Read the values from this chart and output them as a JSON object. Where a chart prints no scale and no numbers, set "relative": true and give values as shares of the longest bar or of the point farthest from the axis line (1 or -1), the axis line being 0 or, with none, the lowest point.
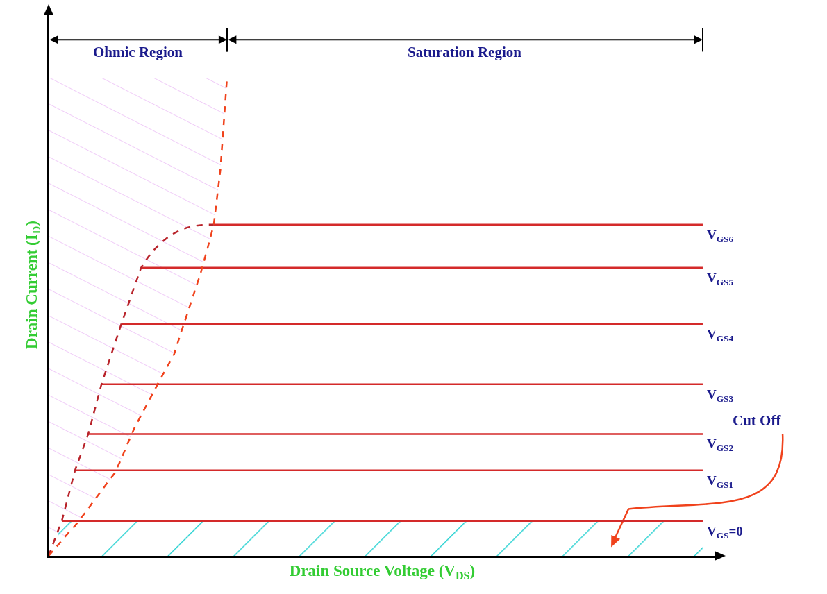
{
  "chart_data": {
    "type": "line",
    "relative": true,
    "xlabel": "Drain Source Voltage (V$_{DS}$)",
    "ylabel": "Drain Current (I$_{D}$)",
    "categories": [
      null,
      null,
      null,
      null,
      null,
      null,
      null,
      null,
      null,
      null,
      null,
      null,
      null,
      null,
      null,
      null,
      null,
      null,
      null,
      null,
      null,
      null,
      null,
      null,
      null,
      null,
      null,
      null,
      null,
      null,
      null,
      null,
      null,
      null,
      null,
      null,
      null,
      null,
      null,
      null,
      null,
      null,
      null,
      null,
      null,
      null,
      null,
      null,
      null,
      null,
      null,
      null,
      null,
      null,
      null,
      null,
      null,
      null,
      null,
      null,
      null,
      null,
      null,
      null,
      null,
      null,
      null,
      null,
      null,
      null,
      null,
      null,
      null,
      null,
      null,
      null,
      null,
      null,
      null,
      null,
      null,
      null,
      null,
      null,
      null,
      null,
      null,
      null,
      null,
      null,
      null,
      null,
      null,
      null,
      null,
      null,
      null,
      null,
      null,
      null
    ],
    "series": [
      {
        "name": "V$_{GS6}$",
        "color": "#d42a2a",
        "values": [
          null,
          null,
          null,
          null,
          null,
          null,
          null,
          null,
          null,
          null,
          null,
          null,
          null,
          null,
          null,
          null,
          null,
          null,
          null,
          null,
          null,
          null,
          null,
          null,
          null,
          0.693,
          0.693,
          0.693,
          0.693,
          0.693,
          0.693,
          0.693,
          0.693,
          0.693,
          0.693,
          0.693,
          0.693,
          0.693,
          0.693,
          0.693,
          0.693,
          0.693,
          0.693,
          0.693,
          0.693,
          0.693,
          0.693,
          0.693,
          0.693,
          0.693,
          0.693,
          0.693,
          0.693,
          0.693,
          0.693,
          0.693,
          0.693,
          0.693,
          0.693,
          0.693,
          0.693,
          0.693,
          0.693,
          0.693,
          0.693,
          0.693,
          0.693,
          0.693,
          0.693,
          0.693,
          0.693,
          0.693,
          0.693,
          0.693,
          0.693,
          0.693,
          0.693,
          0.693,
          0.693,
          0.693,
          0.693,
          0.693,
          0.693,
          0.693,
          0.693,
          0.693,
          0.693,
          0.693,
          0.693,
          0.693,
          0.693,
          0.693,
          0.693,
          0.693,
          0.693,
          0.693,
          0.693,
          0.693,
          0.693,
          0.693
        ]
      },
      {
        "name": "V$_{GS5}$",
        "color": "#d42a2a",
        "values": [
          null,
          null,
          null,
          null,
          null,
          null,
          null,
          null,
          null,
          null,
          null,
          null,
          null,
          null,
          0.603,
          0.603,
          0.603,
          0.603,
          0.603,
          0.603,
          0.603,
          0.603,
          0.603,
          0.603,
          0.603,
          0.603,
          0.603,
          0.603,
          0.603,
          0.603,
          0.603,
          0.603,
          0.603,
          0.603,
          0.603,
          0.603,
          0.603,
          0.603,
          0.603,
          0.603,
          0.603,
          0.603,
          0.603,
          0.603,
          0.603,
          0.603,
          0.603,
          0.603,
          0.603,
          0.603,
          0.603,
          0.603,
          0.603,
          0.603,
          0.603,
          0.603,
          0.603,
          0.603,
          0.603,
          0.603,
          0.603,
          0.603,
          0.603,
          0.603,
          0.603,
          0.603,
          0.603,
          0.603,
          0.603,
          0.603,
          0.603,
          0.603,
          0.603,
          0.603,
          0.603,
          0.603,
          0.603,
          0.603,
          0.603,
          0.603,
          0.603,
          0.603,
          0.603,
          0.603,
          0.603,
          0.603,
          0.603,
          0.603,
          0.603,
          0.603,
          0.603,
          0.603,
          0.603,
          0.603,
          0.603,
          0.603,
          0.603,
          0.603,
          0.603,
          0.603
        ]
      },
      {
        "name": "V$_{GS4}$",
        "color": "#d42a2a",
        "values": [
          null,
          null,
          null,
          null,
          null,
          null,
          null,
          null,
          null,
          null,
          null,
          0.485,
          0.485,
          0.485,
          0.485,
          0.485,
          0.485,
          0.485,
          0.485,
          0.485,
          0.485,
          0.485,
          0.485,
          0.485,
          0.485,
          0.485,
          0.485,
          0.485,
          0.485,
          0.485,
          0.485,
          0.485,
          0.485,
          0.485,
          0.485,
          0.485,
          0.485,
          0.485,
          0.485,
          0.485,
          0.485,
          0.485,
          0.485,
          0.485,
          0.485,
          0.485,
          0.485,
          0.485,
          0.485,
          0.485,
          0.485,
          0.485,
          0.485,
          0.485,
          0.485,
          0.485,
          0.485,
          0.485,
          0.485,
          0.485,
          0.485,
          0.485,
          0.485,
          0.485,
          0.485,
          0.485,
          0.485,
          0.485,
          0.485,
          0.485,
          0.485,
          0.485,
          0.485,
          0.485,
          0.485,
          0.485,
          0.485,
          0.485,
          0.485,
          0.485,
          0.485,
          0.485,
          0.485,
          0.485,
          0.485,
          0.485,
          0.485,
          0.485,
          0.485,
          0.485,
          0.485,
          0.485,
          0.485,
          0.485,
          0.485,
          0.485,
          0.485,
          0.485,
          0.485,
          0.485
        ]
      },
      {
        "name": "V$_{GS3}$",
        "color": "#d42a2a",
        "values": [
          null,
          null,
          null,
          null,
          null,
          null,
          null,
          null,
          0.359,
          0.359,
          0.359,
          0.359,
          0.359,
          0.359,
          0.359,
          0.359,
          0.359,
          0.359,
          0.359,
          0.359,
          0.359,
          0.359,
          0.359,
          0.359,
          0.359,
          0.359,
          0.359,
          0.359,
          0.359,
          0.359,
          0.359,
          0.359,
          0.359,
          0.359,
          0.359,
          0.359,
          0.359,
          0.359,
          0.359,
          0.359,
          0.359,
          0.359,
          0.359,
          0.359,
          0.359,
          0.359,
          0.359,
          0.359,
          0.359,
          0.359,
          0.359,
          0.359,
          0.359,
          0.359,
          0.359,
          0.359,
          0.359,
          0.359,
          0.359,
          0.359,
          0.359,
          0.359,
          0.359,
          0.359,
          0.359,
          0.359,
          0.359,
          0.359,
          0.359,
          0.359,
          0.359,
          0.359,
          0.359,
          0.359,
          0.359,
          0.359,
          0.359,
          0.359,
          0.359,
          0.359,
          0.359,
          0.359,
          0.359,
          0.359,
          0.359,
          0.359,
          0.359,
          0.359,
          0.359,
          0.359,
          0.359,
          0.359,
          0.359,
          0.359,
          0.359,
          0.359,
          0.359,
          0.359,
          0.359,
          0.359
        ]
      },
      {
        "name": "V$_{GS2}$",
        "color": "#d42a2a",
        "values": [
          null,
          null,
          null,
          null,
          null,
          null,
          0.255,
          0.255,
          0.255,
          0.255,
          0.255,
          0.255,
          0.255,
          0.255,
          0.255,
          0.255,
          0.255,
          0.255,
          0.255,
          0.255,
          0.255,
          0.255,
          0.255,
          0.255,
          0.255,
          0.255,
          0.255,
          0.255,
          0.255,
          0.255,
          0.255,
          0.255,
          0.255,
          0.255,
          0.255,
          0.255,
          0.255,
          0.255,
          0.255,
          0.255,
          0.255,
          0.255,
          0.255,
          0.255,
          0.255,
          0.255,
          0.255,
          0.255,
          0.255,
          0.255,
          0.255,
          0.255,
          0.255,
          0.255,
          0.255,
          0.255,
          0.255,
          0.255,
          0.255,
          0.255,
          0.255,
          0.255,
          0.255,
          0.255,
          0.255,
          0.255,
          0.255,
          0.255,
          0.255,
          0.255,
          0.255,
          0.255,
          0.255,
          0.255,
          0.255,
          0.255,
          0.255,
          0.255,
          0.255,
          0.255,
          0.255,
          0.255,
          0.255,
          0.255,
          0.255,
          0.255,
          0.255,
          0.255,
          0.255,
          0.255,
          0.255,
          0.255,
          0.255,
          0.255,
          0.255,
          0.255,
          0.255,
          0.255,
          0.255,
          0.255
        ]
      },
      {
        "name": "V$_{GS1}$",
        "color": "#d42a2a",
        "values": [
          null,
          null,
          null,
          null,
          0.179,
          0.179,
          0.179,
          0.179,
          0.179,
          0.179,
          0.179,
          0.179,
          0.179,
          0.179,
          0.179,
          0.179,
          0.179,
          0.179,
          0.179,
          0.179,
          0.179,
          0.179,
          0.179,
          0.179,
          0.179,
          0.179,
          0.179,
          0.179,
          0.179,
          0.179,
          0.179,
          0.179,
          0.179,
          0.179,
          0.179,
          0.179,
          0.179,
          0.179,
          0.179,
          0.179,
          0.179,
          0.179,
          0.179,
          0.179,
          0.179,
          0.179,
          0.179,
          0.179,
          0.179,
          0.179,
          0.179,
          0.179,
          0.179,
          0.179,
          0.179,
          0.179,
          0.179,
          0.179,
          0.179,
          0.179,
          0.179,
          0.179,
          0.179,
          0.179,
          0.179,
          0.179,
          0.179,
          0.179,
          0.179,
          0.179,
          0.179,
          0.179,
          0.179,
          0.179,
          0.179,
          0.179,
          0.179,
          0.179,
          0.179,
          0.179,
          0.179,
          0.179,
          0.179,
          0.179,
          0.179,
          0.179,
          0.179,
          0.179,
          0.179,
          0.179,
          0.179,
          0.179,
          0.179,
          0.179,
          0.179,
          0.179,
          0.179,
          0.179,
          0.179,
          0.179
        ]
      },
      {
        "name": "V$_{GS}$=0",
        "color": "#d42a2a",
        "values": [
          null,
          null,
          0.073,
          0.073,
          0.073,
          0.073,
          0.073,
          0.073,
          0.073,
          0.073,
          0.073,
          0.073,
          0.073,
          0.073,
          0.073,
          0.073,
          0.073,
          0.073,
          0.073,
          0.073,
          0.073,
          0.073,
          0.073,
          0.073,
          0.073,
          0.073,
          0.073,
          0.073,
          0.073,
          0.073,
          0.073,
          0.073,
          0.073,
          0.073,
          0.073,
          0.073,
          0.073,
          0.073,
          0.073,
          0.073,
          0.073,
          0.073,
          0.073,
          0.073,
          0.073,
          0.073,
          0.073,
          0.073,
          0.073,
          0.073,
          0.073,
          0.073,
          0.073,
          0.073,
          0.073,
          0.073,
          0.073,
          0.073,
          0.073,
          0.073,
          0.073,
          0.073,
          0.073,
          0.073,
          0.073,
          0.073,
          0.073,
          0.073,
          0.073,
          0.073,
          0.073,
          0.073,
          0.073,
          0.073,
          0.073,
          0.073,
          0.073,
          0.073,
          0.073,
          0.073,
          0.073,
          0.073,
          0.073,
          0.073,
          0.073,
          0.073,
          0.073,
          0.073,
          0.073,
          0.073,
          0.073,
          0.073,
          0.073,
          0.073,
          0.073,
          0.073,
          0.073,
          0.073,
          0.073,
          0.073
        ]
      },
      {
        "color": "#b8232a",
        "line_style": "dashed",
        "values": [
          0,
          0.037,
          0.073,
          0.126,
          0.179,
          0.217,
          0.255,
          0.307,
          0.359,
          0.401,
          0.443,
          0.485,
          0.524,
          0.564,
          0.603,
          0.624,
          0.641,
          0.655,
          0.666,
          0.675,
          0.682,
          0.687,
          0.69,
          0.692,
          0.693,
          0.693,
          null,
          null,
          null,
          null,
          null,
          null,
          null,
          null,
          null,
          null,
          null,
          null,
          null,
          null,
          null,
          null,
          null,
          null,
          null,
          null,
          null,
          null,
          null,
          null,
          null,
          null,
          null,
          null,
          null,
          null,
          null,
          null,
          null,
          null,
          null,
          null,
          null,
          null,
          null,
          null,
          null,
          null,
          null,
          null,
          null,
          null,
          null,
          null,
          null,
          null,
          null,
          null,
          null,
          null,
          null,
          null,
          null,
          null,
          null,
          null,
          null,
          null,
          null,
          null,
          null,
          null,
          null,
          null,
          null,
          null,
          null,
          null,
          null,
          null
        ]
      },
      {
        "color": "#f0421c",
        "line_style": "dashed",
        "values": [
          0,
          0.016,
          0.032,
          0.048,
          0.063,
          0.081,
          0.099,
          0.118,
          0.136,
          0.155,
          0.173,
          0.203,
          0.236,
          0.268,
          0.294,
          0.32,
          0.346,
          0.372,
          0.397,
          0.422,
          0.466,
          0.507,
          0.549,
          0.591,
          0.641,
          0.693,
          0.808,
          1.0,
          null,
          null,
          null,
          null,
          null,
          null,
          null,
          null,
          null,
          null,
          null,
          null,
          null,
          null,
          null,
          null,
          null,
          null,
          null,
          null,
          null,
          null,
          null,
          null,
          null,
          null,
          null,
          null,
          null,
          null,
          null,
          null,
          null,
          null,
          null,
          null,
          null,
          null,
          null,
          null,
          null,
          null,
          null,
          null,
          null,
          null,
          null,
          null,
          null,
          null,
          null,
          null,
          null,
          null,
          null,
          null,
          null,
          null,
          null,
          null,
          null,
          null,
          null,
          null,
          null,
          null,
          null,
          null,
          null,
          null,
          null,
          null
        ]
      }
    ],
    "annotations": [
      "Ohmic Region",
      "Saturation Region",
      "Cut Off"
    ]
  }
}
